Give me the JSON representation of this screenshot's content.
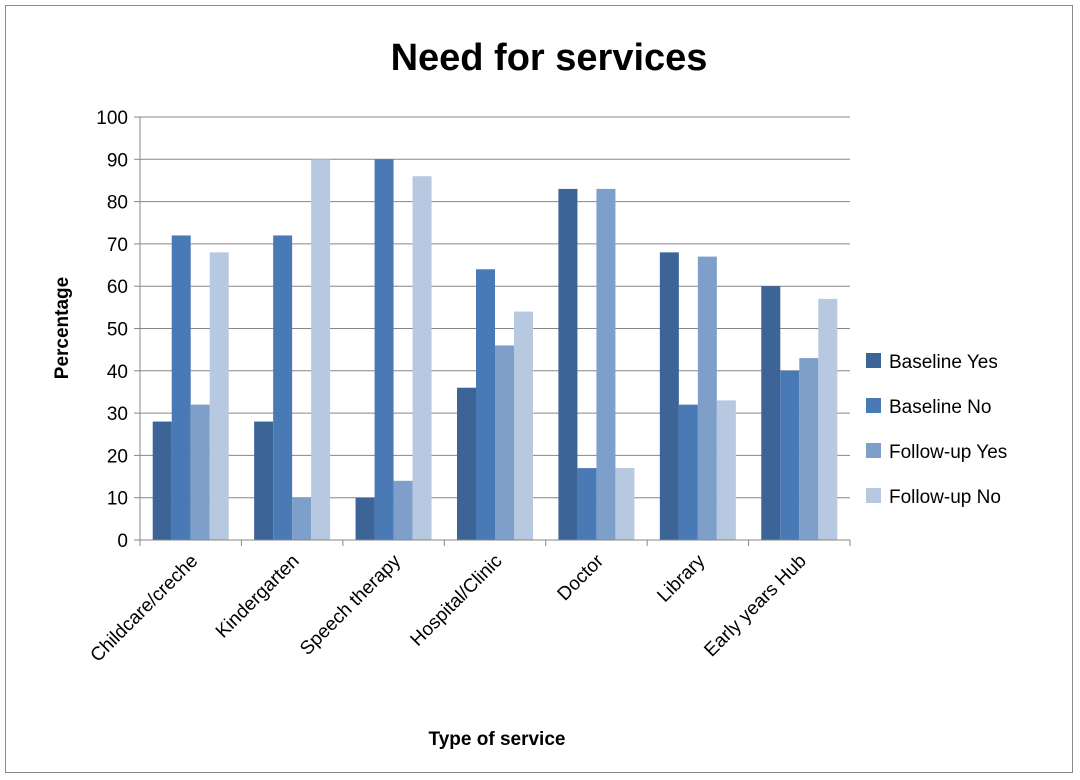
{
  "chart_data": {
    "type": "bar",
    "title": "Need for services",
    "xlabel": "Type of service",
    "ylabel": "Percentage",
    "ylim": [
      0,
      100
    ],
    "ytick_step": 10,
    "grid": true,
    "legend_position": "right",
    "categories": [
      "Childcare/creche",
      "Kindergarten",
      "Speech therapy",
      "Hospital/Clinic",
      "Doctor",
      "Library",
      "Early years Hub"
    ],
    "series": [
      {
        "name": "Baseline Yes",
        "color": "#3c6496",
        "values": [
          28,
          28,
          10,
          36,
          83,
          68,
          60
        ]
      },
      {
        "name": "Baseline No",
        "color": "#4a7ab5",
        "values": [
          72,
          72,
          90,
          64,
          17,
          32,
          40
        ]
      },
      {
        "name": "Follow-up Yes",
        "color": "#7f9fcb",
        "values": [
          32,
          10,
          14,
          46,
          83,
          67,
          43
        ]
      },
      {
        "name": "Follow-up No",
        "color": "#b7c8e1",
        "values": [
          68,
          90,
          86,
          54,
          17,
          33,
          57
        ]
      }
    ]
  }
}
